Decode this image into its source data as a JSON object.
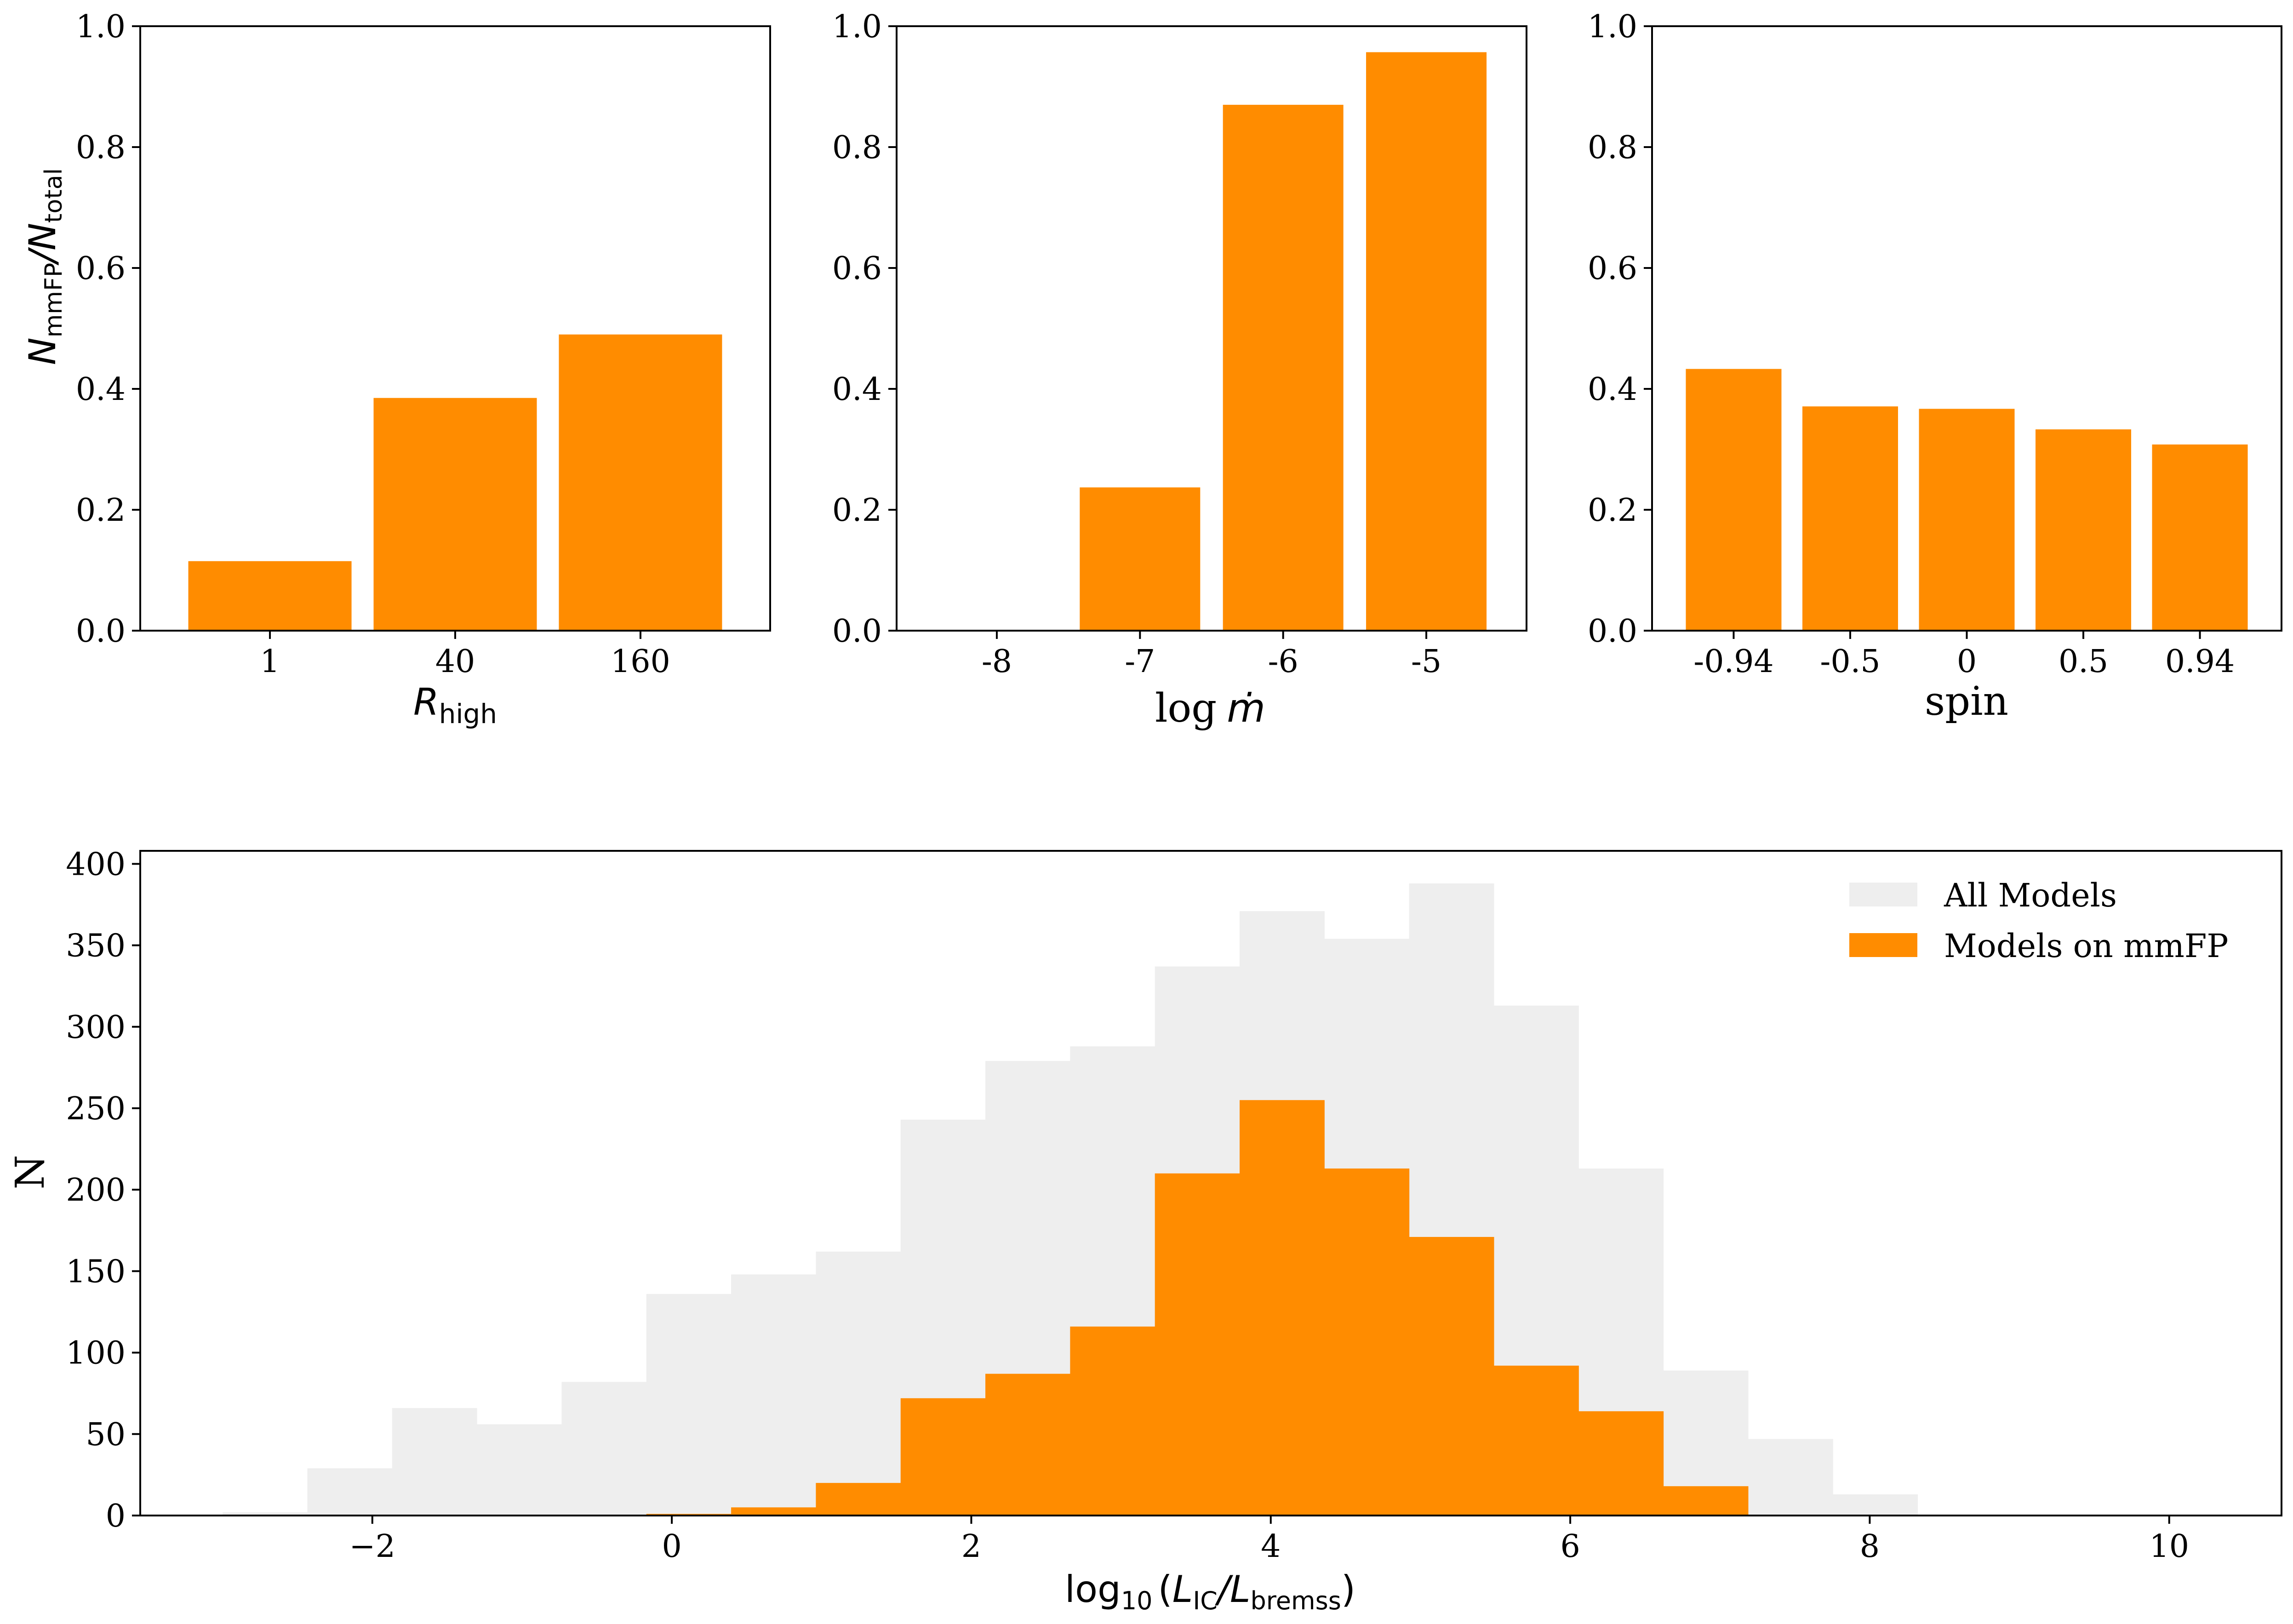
{
  "colors": {
    "orange": "#ff8c00",
    "grey": "#eeeeee",
    "axis": "#000000"
  },
  "chart_data": [
    {
      "type": "bar",
      "id": "rhigh",
      "categories": [
        "1",
        "40",
        "160"
      ],
      "values": [
        0.115,
        0.385,
        0.49
      ],
      "ylim": [
        0,
        1.0
      ],
      "yticks": [
        "0.0",
        "0.2",
        "0.4",
        "0.6",
        "0.8",
        "1.0"
      ],
      "ytick_values": [
        0,
        0.2,
        0.4,
        0.6,
        0.8,
        1.0
      ],
      "ylabel": {
        "main": "N",
        "sub1": "mmFP",
        "slash": "/N",
        "sub2": "total"
      },
      "xlabel": {
        "main": "R",
        "sub": "high"
      }
    },
    {
      "type": "bar",
      "id": "mdot",
      "categories": [
        "-8",
        "-7",
        "-6",
        "-5"
      ],
      "values": [
        0.0,
        0.237,
        0.87,
        0.957
      ],
      "ylim": [
        0,
        1.0
      ],
      "yticks": [
        "0.0",
        "0.2",
        "0.4",
        "0.6",
        "0.8",
        "1.0"
      ],
      "ytick_values": [
        0,
        0.2,
        0.4,
        0.6,
        0.8,
        1.0
      ],
      "xlabel": {
        "log": "log",
        "var": "ṁ"
      }
    },
    {
      "type": "bar",
      "id": "spin",
      "categories": [
        "-0.94",
        "-0.5",
        "0",
        "0.5",
        "0.94"
      ],
      "values": [
        0.433,
        0.371,
        0.367,
        0.333,
        0.308
      ],
      "ylim": [
        0,
        1.0
      ],
      "yticks": [
        "0.0",
        "0.2",
        "0.4",
        "0.6",
        "0.8",
        "1.0"
      ],
      "ytick_values": [
        0,
        0.2,
        0.4,
        0.6,
        0.8,
        1.0
      ],
      "xlabel": {
        "text": "spin"
      }
    },
    {
      "type": "histogram",
      "id": "ratio",
      "xlim": [
        -3.55,
        10.75
      ],
      "ylim": [
        0,
        408
      ],
      "bin_start": -3.0,
      "bin_width": 0.566,
      "xticks": [
        "−2",
        "0",
        "2",
        "4",
        "6",
        "8",
        "10"
      ],
      "xtick_values": [
        -2,
        0,
        2,
        4,
        6,
        8,
        10
      ],
      "yticks": [
        "0",
        "50",
        "100",
        "150",
        "200",
        "250",
        "300",
        "350",
        "400"
      ],
      "ytick_values": [
        0,
        50,
        100,
        150,
        200,
        250,
        300,
        350,
        400
      ],
      "ylabel": "N",
      "xlabel": {
        "log": "log",
        "base": "10",
        "L1": "L",
        "sub1": "IC",
        "slash": "/L",
        "sub2": "bremss"
      },
      "series": [
        {
          "name": "All Models",
          "values": [
            2,
            29,
            66,
            56,
            82,
            136,
            148,
            162,
            243,
            279,
            288,
            337,
            371,
            354,
            388,
            313,
            213,
            89,
            47,
            13,
            0,
            0,
            0,
            0
          ]
        },
        {
          "name": "Models on mmFP",
          "values": [
            0,
            0,
            0,
            0,
            0,
            1,
            5,
            20,
            72,
            87,
            116,
            210,
            255,
            213,
            171,
            92,
            64,
            18,
            0,
            0,
            0,
            0,
            0,
            0
          ]
        }
      ]
    }
  ]
}
